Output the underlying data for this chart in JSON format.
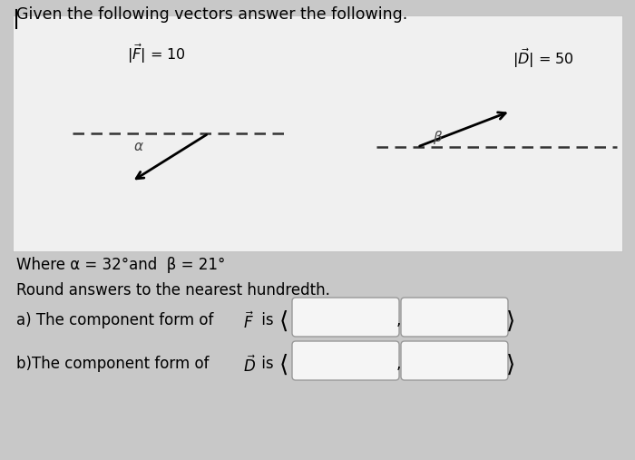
{
  "title": "Given the following vectors answer the following.",
  "bg_color": "#c8c8c8",
  "panel_color": "#f0f0f0",
  "white": "#ffffff",
  "F_magnitude": 10,
  "D_magnitude": 50,
  "alpha_deg": 32,
  "beta_deg": 21,
  "where_text": "Where α = 32°and  β = 21°",
  "round_text": "Round answers to the nearest hundredth.",
  "a_text": "a) The component form of ",
  "b_text": "b)The component form of ",
  "F_label": "|$\\vec{F}$| = 10",
  "D_label": "|$\\vec{D}$| = 50",
  "alpha_label": "α",
  "beta_label": "β"
}
